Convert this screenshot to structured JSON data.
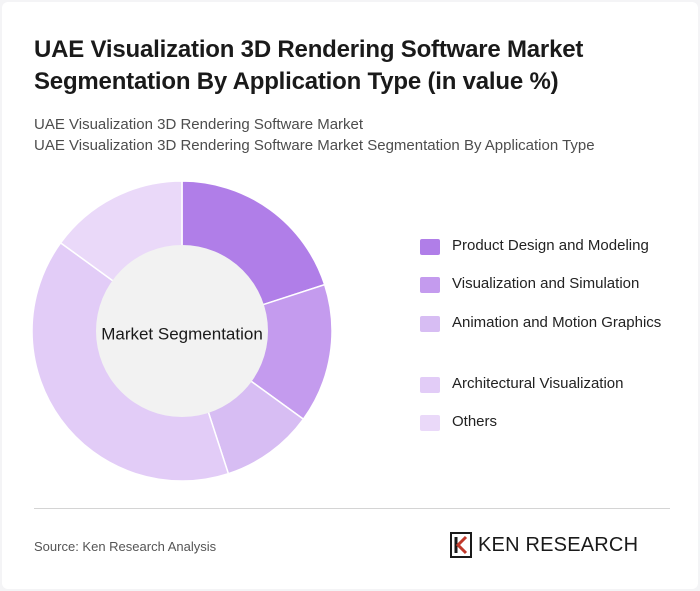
{
  "header": {
    "title": "UAE Visualization 3D Rendering Software Market Segmentation By Application Type (in value %)",
    "subtitle_1": "UAE Visualization 3D Rendering Software Market",
    "subtitle_2": "UAE Visualization 3D Rendering Software Market Segmentation By Application Type"
  },
  "chart_data": {
    "type": "pie",
    "style": "donut",
    "center_label": "Market Segmentation",
    "legend_position": "right",
    "series": [
      {
        "name": "Product Design and Modeling",
        "value": 20,
        "color": "#b07ee8"
      },
      {
        "name": "Visualization and Simulation",
        "value": 15,
        "color": "#c49bee"
      },
      {
        "name": "Animation and Motion Graphics",
        "value": 10,
        "color": "#d7bdf3"
      },
      {
        "name": "Architectural Visualization",
        "value": 40,
        "color": "#e2ccf7"
      },
      {
        "name": "Others",
        "value": 15,
        "color": "#ead9f9"
      }
    ]
  },
  "footer": {
    "source": "Source: Ken Research Analysis",
    "logo_text": "KEN RESEARCH",
    "logo_icon": "ken-research-k-icon"
  }
}
